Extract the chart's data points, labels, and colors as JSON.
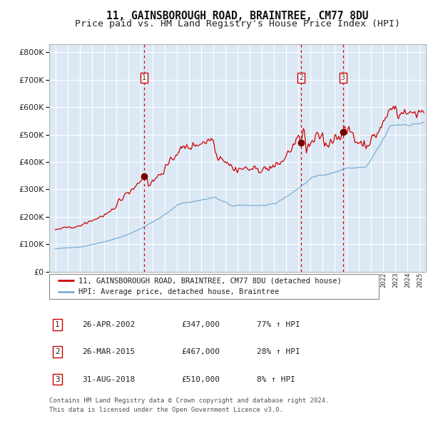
{
  "title": "11, GAINSBOROUGH ROAD, BRAINTREE, CM77 8DU",
  "subtitle": "Price paid vs. HM Land Registry's House Price Index (HPI)",
  "legend_property": "11, GAINSBOROUGH ROAD, BRAINTREE, CM77 8DU (detached house)",
  "legend_hpi": "HPI: Average price, detached house, Braintree",
  "footer1": "Contains HM Land Registry data © Crown copyright and database right 2024.",
  "footer2": "This data is licensed under the Open Government Licence v3.0.",
  "transactions": [
    {
      "num": 1,
      "date": "26-APR-2002",
      "price": 347000,
      "pct": "77%",
      "x": 2002.32
    },
    {
      "num": 2,
      "date": "26-MAR-2015",
      "price": 467000,
      "pct": "28%",
      "x": 2015.23
    },
    {
      "num": 3,
      "date": "31-AUG-2018",
      "price": 510000,
      "pct": "8%",
      "x": 2018.67
    }
  ],
  "ylim": [
    0,
    830000
  ],
  "xlim_start": 1994.5,
  "xlim_end": 2025.5,
  "bg_color": "#dce9f5",
  "red_line_color": "#cc0000",
  "blue_line_color": "#7aadd4",
  "dashed_color": "#cc0000",
  "marker_color": "#770000",
  "box_color": "#cc0000",
  "grid_color": "#ffffff",
  "title_fontsize": 10.5,
  "subtitle_fontsize": 9.5
}
